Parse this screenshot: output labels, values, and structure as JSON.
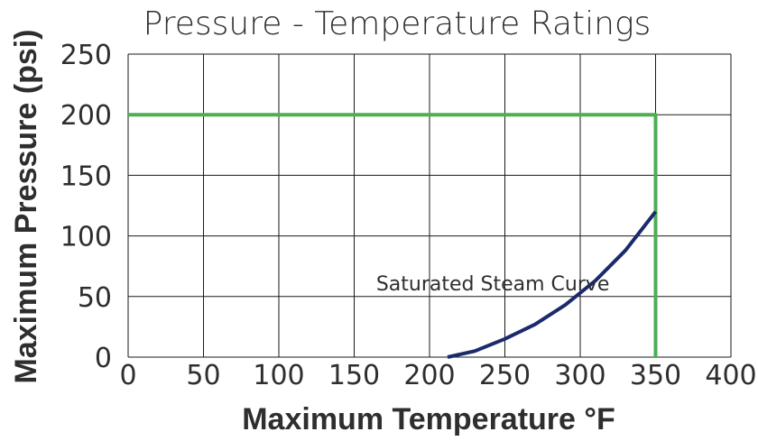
{
  "chart_data": {
    "type": "line",
    "title": "Pressure - Temperature Ratings",
    "xlabel": "Maximum Temperature °F",
    "ylabel": "Maximum Pressure (psi)",
    "xlim": [
      0,
      400
    ],
    "ylim": [
      0,
      250
    ],
    "x_ticks": [
      0,
      50,
      100,
      150,
      200,
      250,
      300,
      350,
      400
    ],
    "y_ticks": [
      0,
      50,
      100,
      150,
      200,
      250
    ],
    "grid": true,
    "series": [
      {
        "color": "#4caf50",
        "points": [
          [
            0,
            200
          ],
          [
            350,
            200
          ],
          [
            350,
            0
          ]
        ]
      },
      {
        "color": "#1a2a6c",
        "points": [
          [
            212,
            0
          ],
          [
            230,
            5
          ],
          [
            250,
            15
          ],
          [
            270,
            27
          ],
          [
            290,
            43
          ],
          [
            310,
            63
          ],
          [
            330,
            88
          ],
          [
            350,
            120
          ]
        ]
      }
    ],
    "annotations": [
      {
        "text": "Saturated Steam Curve",
        "x": 242,
        "y": 55
      }
    ]
  }
}
